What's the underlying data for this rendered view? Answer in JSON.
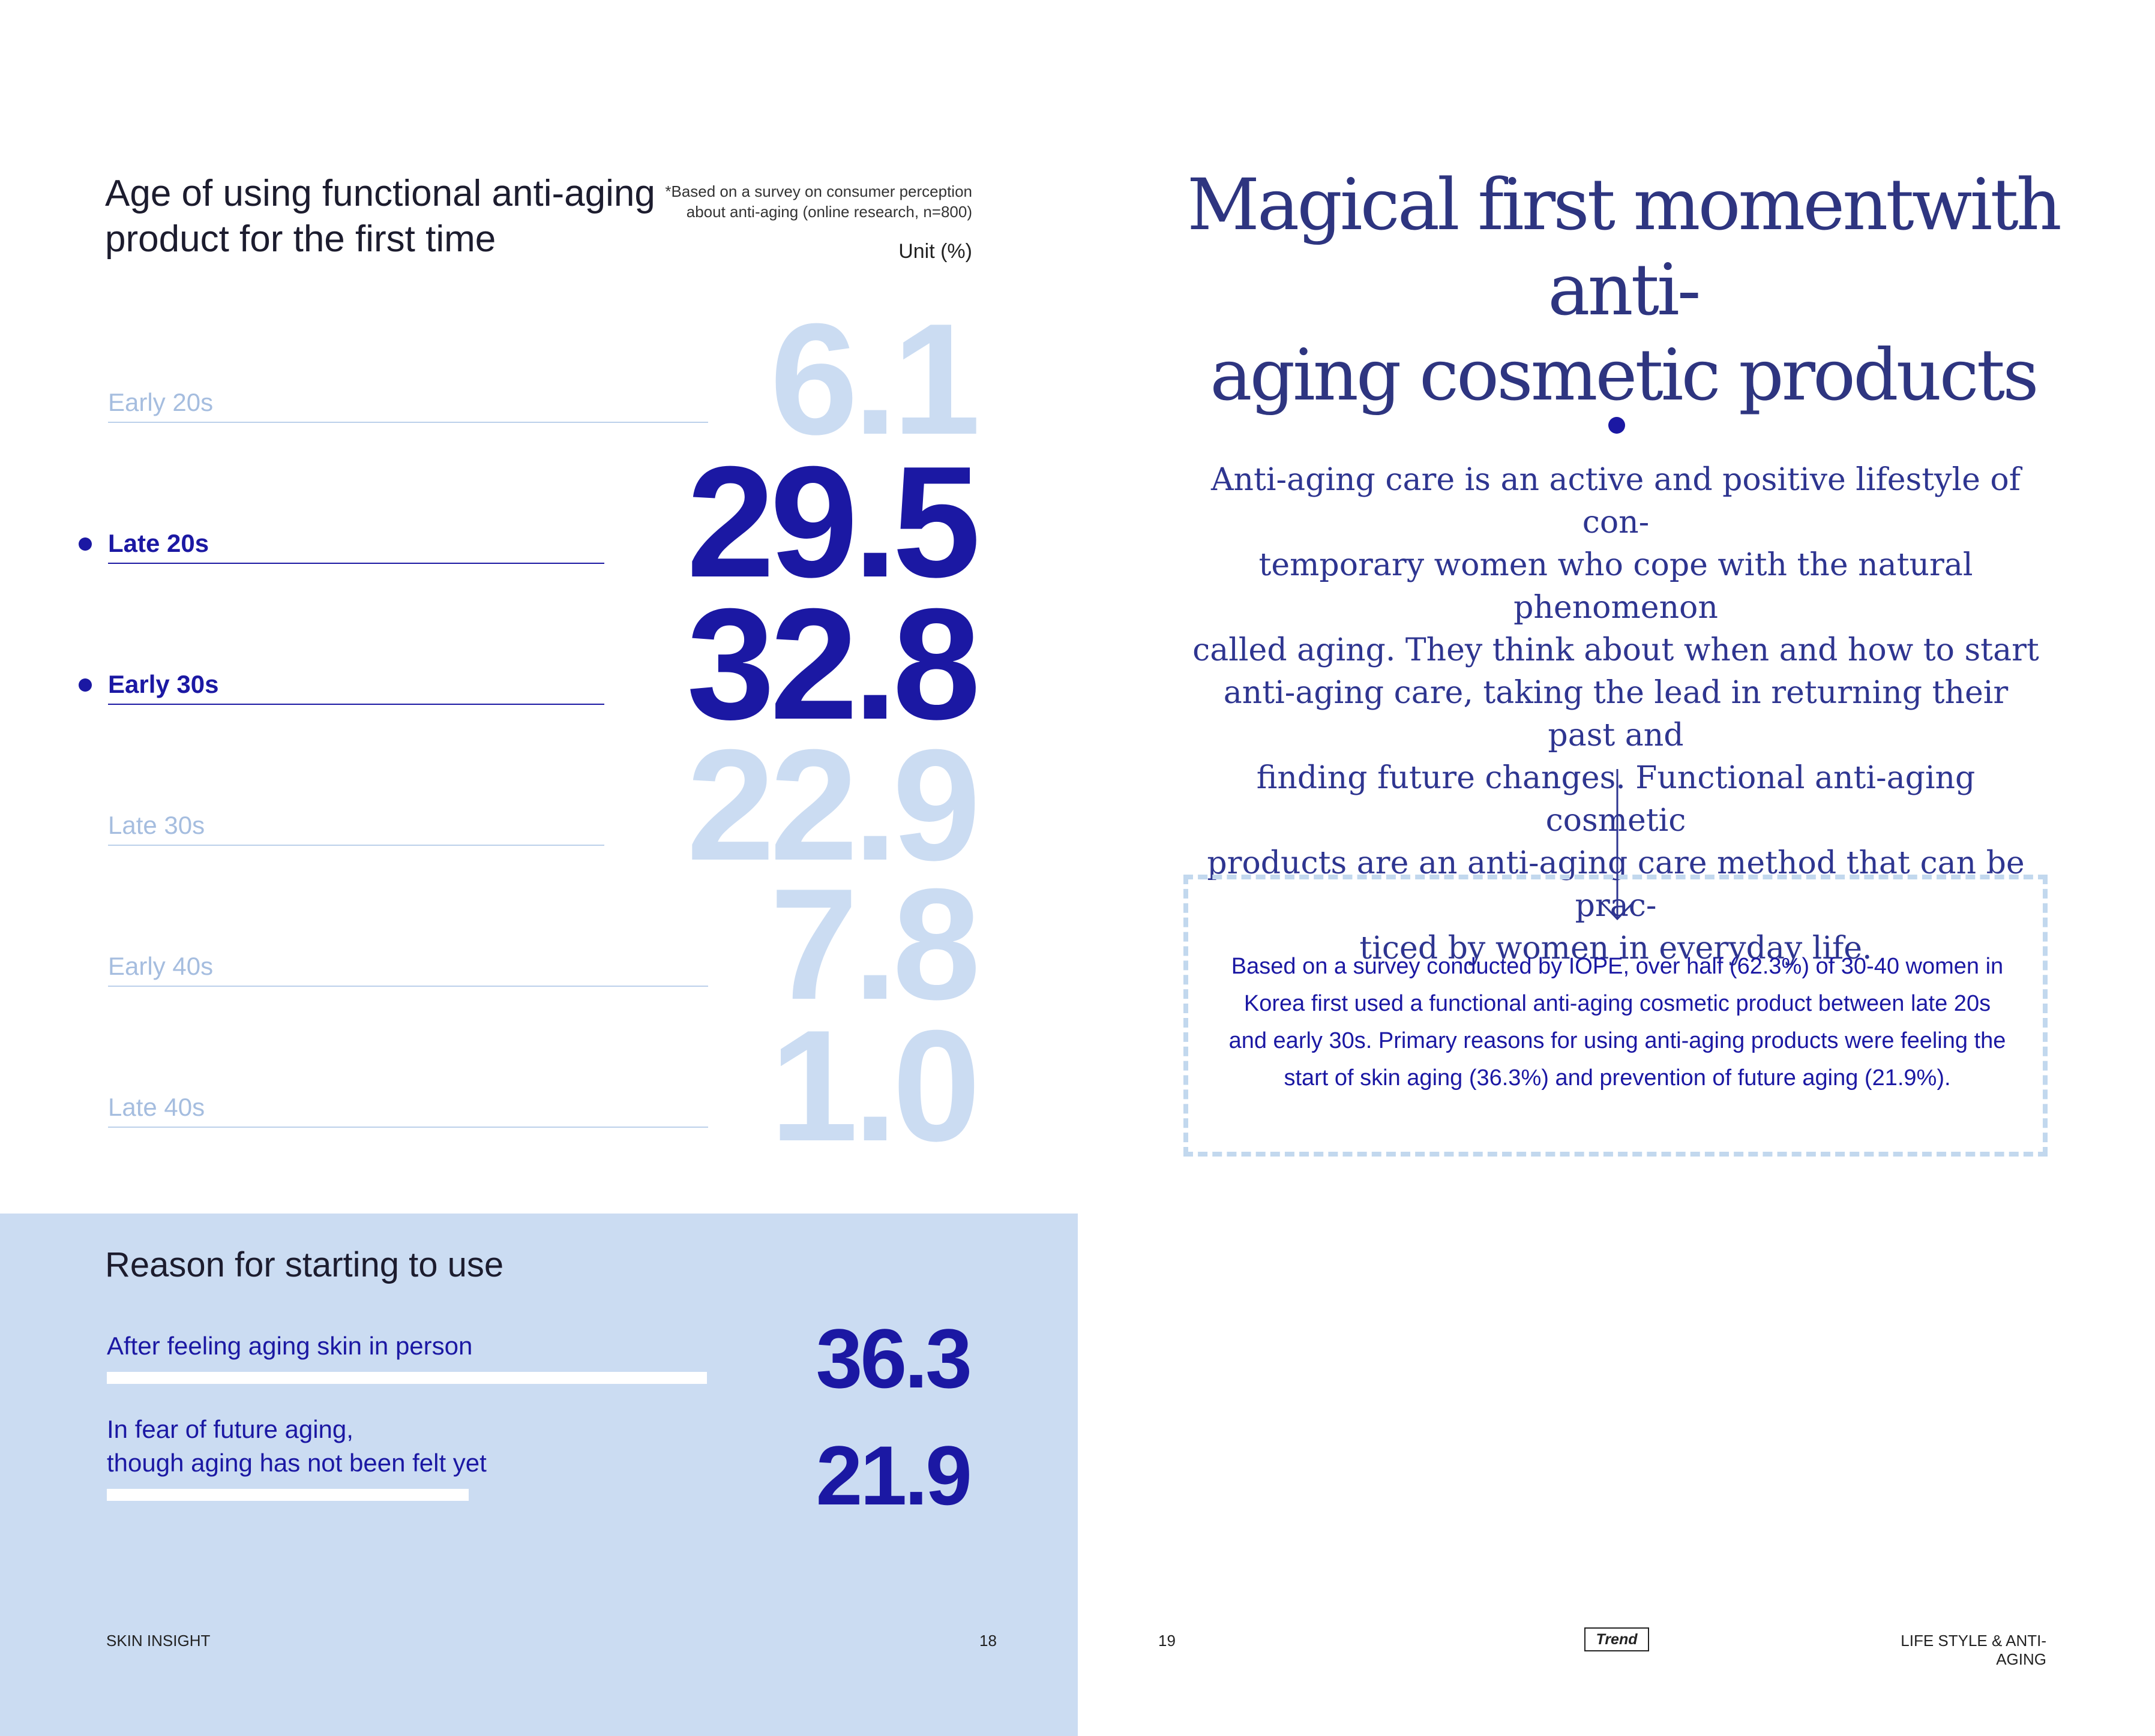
{
  "left_page": {
    "chart_title": "Age of using functional anti-aging product for the first time",
    "footnote_line1": "*Based on a survey on consumer perception",
    "footnote_line2": "about anti-aging (online research, n=800)",
    "unit": "Unit (%)",
    "colors": {
      "highlight": "#1b18a3",
      "muted_text": "#a5bddf",
      "muted_number": "#cbdcf2"
    },
    "chart_data": {
      "type": "bar",
      "title": "Age of using functional anti-aging product for the first time",
      "unit": "Unit (%)",
      "categories": [
        "Early 20s",
        "Late 20s",
        "Early 30s",
        "Late 30s",
        "Early 40s",
        "Late 40s"
      ],
      "values": [
        6.1,
        29.5,
        32.8,
        22.9,
        7.8,
        1.0
      ],
      "value_labels": [
        "6.1",
        "29.5",
        "32.8",
        "22.9",
        "7.8",
        "1.0"
      ],
      "highlighted": [
        "Late 20s",
        "Early 30s"
      ]
    },
    "reason_panel": {
      "title": "Reason for starting to use",
      "chart_data": {
        "type": "bar",
        "title": "Reason for starting to use",
        "categories": [
          "After feeling aging skin in person",
          "In fear of future aging, though aging has not been felt yet"
        ],
        "values": [
          36.3,
          21.9
        ],
        "value_labels": [
          "36.3",
          "21.9"
        ]
      },
      "label_1": "After feeling aging skin in person",
      "label_2_line1": "In fear of future aging,",
      "label_2_line2": "though aging has not been felt yet"
    },
    "footer_left": "SKIN INSIGHT",
    "page_number": "18"
  },
  "right_page": {
    "title_line1": "Magical first momentwith anti-",
    "title_line2": "aging cosmetic products",
    "body_lines": [
      "Anti-aging care is an active and positive lifestyle of con-",
      "temporary women who cope with the natural phenomenon",
      "called aging. They think about when and how to start",
      "anti-aging care, taking the lead in returning their past and",
      "finding future changes. Functional anti-aging cosmetic",
      "products are an anti-aging care method that can be prac-",
      "ticed by women in everyday life."
    ],
    "info_lines": [
      "Based on a survey conducted by IOPE, over half (62.3%) of 30-40 women in",
      "Korea first used a functional anti-aging cosmetic product between late 20s",
      "and early 30s. Primary reasons for using anti-aging products were feeling the",
      "start of skin aging (36.3%) and prevention of future aging (21.9%)."
    ],
    "page_number": "19",
    "badge": "Trend",
    "footer_right": "LIFE STYLE & ANTI-AGING"
  }
}
